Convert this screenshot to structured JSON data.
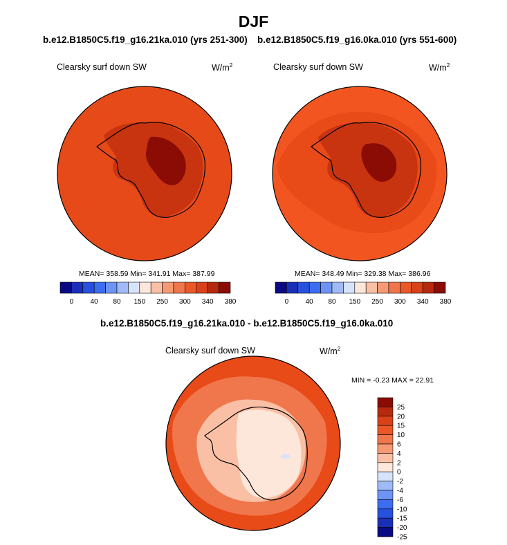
{
  "title": "DJF",
  "panels": [
    {
      "case_title": "b.e12.B1850C5.f19_g16.21ka.010 (yrs 251-300)",
      "variable": "Clearsky surf down SW",
      "units_base": "W/m",
      "units_exp": "2",
      "stats": "MEAN= 358.59  Min= 341.91  Max= 387.99",
      "ocean_color": "#e64a19",
      "ice_outer_color": "#c83410",
      "ice_inner_color": "#8a0c05"
    },
    {
      "case_title": "b.e12.B1850C5.f19_g16.0ka.010 (yrs 551-600)",
      "variable": "Clearsky surf down SW",
      "units_base": "W/m",
      "units_exp": "2",
      "stats": "MEAN= 348.49  Min= 329.38  Max= 386.96",
      "ocean_color": "#f2551f",
      "ice_outer_color": "#c83410",
      "ice_inner_color": "#8a0c05"
    }
  ],
  "colorbar_top": {
    "colors": [
      "#0a0a82",
      "#1a2fb8",
      "#2850de",
      "#3c6cf0",
      "#6d94f4",
      "#9fbaf7",
      "#d6e3fb",
      "#fde6da",
      "#f9c0a5",
      "#f59a74",
      "#f0764c",
      "#ea5828",
      "#d9411a",
      "#b52a0e",
      "#8a0c05"
    ],
    "labels": [
      "0",
      "40",
      "80",
      "150",
      "250",
      "300",
      "340",
      "380"
    ]
  },
  "difference": {
    "title": "b.e12.B1850C5.f19_g16.21ka.010 - b.e12.B1850C5.f19_g16.0ka.010",
    "variable": "Clearsky surf down SW",
    "units_base": "W/m",
    "units_exp": "2",
    "minmax": "MIN =  -0.23 MAX =  22.91",
    "ocean_color": "#e84a18",
    "colorbar": {
      "colors": [
        "#0a0a82",
        "#1a2fb8",
        "#2850de",
        "#3c6cf0",
        "#6d94f4",
        "#9fbaf7",
        "#d6e3fb",
        "#fde6da",
        "#f9c0a5",
        "#f59a74",
        "#f0764c",
        "#ea5828",
        "#d9411a",
        "#b52a0e",
        "#8a0c05"
      ],
      "labels": [
        "25",
        "20",
        "15",
        "10",
        "6",
        "4",
        "2",
        "0",
        "-2",
        "-4",
        "-6",
        "-10",
        "-15",
        "-20",
        "-25"
      ]
    }
  }
}
